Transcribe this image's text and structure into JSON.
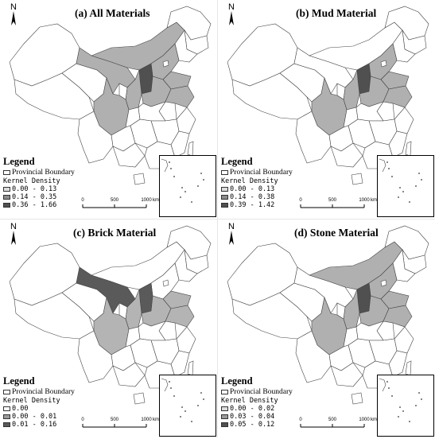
{
  "panels": [
    {
      "title": "(a) All Materials",
      "legend": {
        "title": "Legend",
        "boundary_label": "Provincial Boundary",
        "density_label": "Kernel Density",
        "classes": [
          {
            "label": "0.00 - 0.13",
            "color": "#dcdcdc"
          },
          {
            "label": "0.14 - 0.35",
            "color": "#8c8c8c"
          },
          {
            "label": "0.36 - 1.66",
            "color": "#505050"
          }
        ]
      },
      "shading": {
        "xinjiang": 0,
        "tibet": 0,
        "qinghai": 0,
        "gansu": 1,
        "innermongolia": 1,
        "shanxi": 2,
        "shaanxi": 1,
        "hebei": 1,
        "shandong": 1,
        "henan": 1,
        "sichuan": 1,
        "jiangsu": 1
      }
    },
    {
      "title": "(b) Mud Material",
      "legend": {
        "title": "Legend",
        "boundary_label": "Provincial Boundary",
        "density_label": "Kernel Density",
        "classes": [
          {
            "label": "0.00 - 0.13",
            "color": "#dcdcdc"
          },
          {
            "label": "0.14 - 0.38",
            "color": "#8c8c8c"
          },
          {
            "label": "0.39 - 1.42",
            "color": "#505050"
          }
        ]
      },
      "shading": {
        "xinjiang": 0,
        "tibet": 0,
        "qinghai": 0,
        "gansu": 0,
        "innermongolia": 0,
        "shanxi": 2,
        "shaanxi": 1,
        "hebei": 1,
        "shandong": 1,
        "henan": 1,
        "sichuan": 1,
        "jiangsu": 1
      }
    },
    {
      "title": "(c) Brick Material",
      "legend": {
        "title": "Legend",
        "boundary_label": "Provincial Boundary",
        "density_label": "Kernel Density",
        "classes": [
          {
            "label": "0.00",
            "color": "#ffffff"
          },
          {
            "label": "0.00 - 0.01",
            "color": "#9a9a9a"
          },
          {
            "label": "0.01 - 0.16",
            "color": "#5a5a5a"
          }
        ]
      },
      "shading": {
        "xinjiang": 0,
        "tibet": 0,
        "qinghai": 0,
        "gansu": 2,
        "innermongolia": 0,
        "shanxi": 2,
        "shaanxi": 1,
        "hebei": 0,
        "shandong": 1,
        "henan": 1,
        "sichuan": 1,
        "jiangsu": 1
      }
    },
    {
      "title": "(d) Stone Material",
      "legend": {
        "title": "Legend",
        "boundary_label": "Provincial Boundary",
        "density_label": "Kernel Density",
        "classes": [
          {
            "label": "0.00 - 0.02",
            "color": "#dcdcdc"
          },
          {
            "label": "0.03 - 0.04",
            "color": "#9a9a9a"
          },
          {
            "label": "0.05 - 0.12",
            "color": "#505050"
          }
        ]
      },
      "shading": {
        "xinjiang": 0,
        "tibet": 0,
        "qinghai": 0,
        "gansu": 0,
        "innermongolia": 1,
        "shanxi": 2,
        "shaanxi": 1,
        "hebei": 1,
        "shandong": 1,
        "henan": 1,
        "sichuan": 1,
        "jiangsu": 1
      }
    }
  ],
  "north_label": "N",
  "scale": {
    "ticks": [
      "0",
      "500",
      "1000"
    ],
    "unit": "km"
  }
}
